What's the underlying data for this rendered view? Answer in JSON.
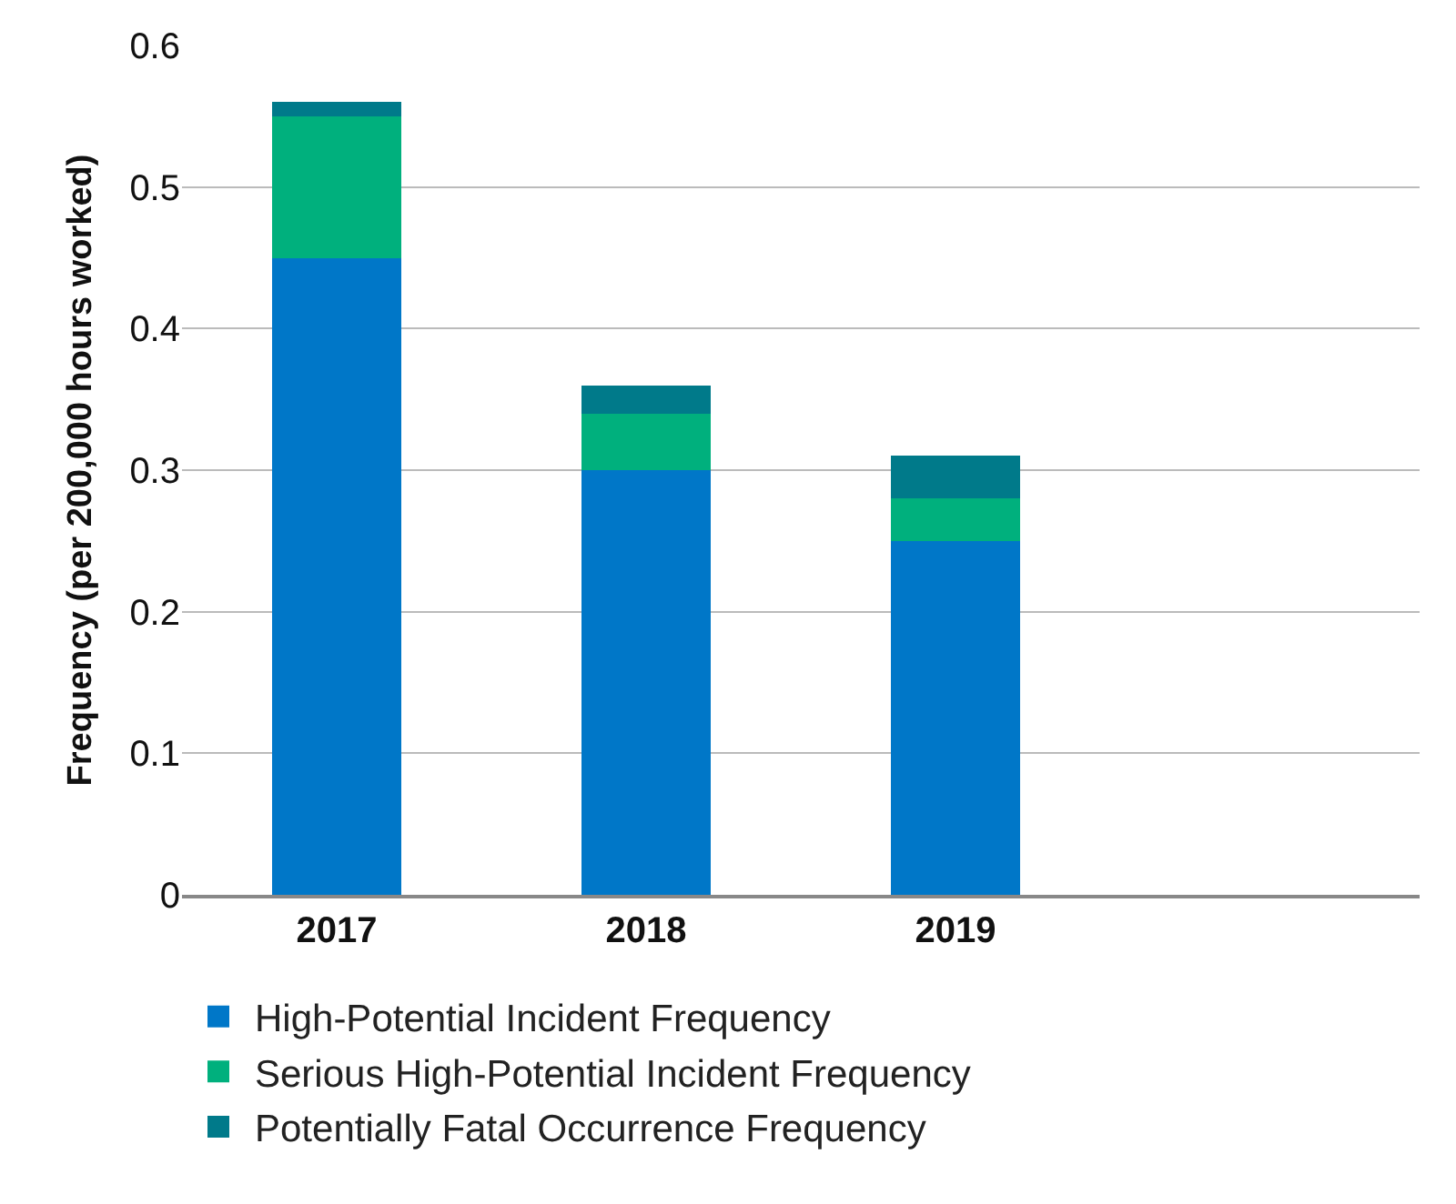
{
  "chart_data": {
    "type": "bar",
    "stacked": true,
    "ylabel": "Frequency (per 200,000 hours worked)",
    "categories": [
      "2017",
      "2018",
      "2019",
      null
    ],
    "series": [
      {
        "name": "High-Potential Incident Frequency",
        "color": "#0077c8",
        "values": [
          0.45,
          0.3,
          0.25,
          null
        ]
      },
      {
        "name": "Serious High-Potential Incident Frequency",
        "color": "#00b07d",
        "values": [
          0.1,
          0.04,
          0.03,
          null
        ]
      },
      {
        "name": "Potentially Fatal Occurrence Frequency",
        "color": "#007a8a",
        "values": [
          0.01,
          0.02,
          0.03,
          null
        ]
      }
    ],
    "ylim": [
      0,
      0.6
    ],
    "yticks": [
      0,
      0.1,
      0.2,
      0.3,
      0.4,
      0.5,
      0.6
    ],
    "grid": "y",
    "legend": "bottom"
  }
}
